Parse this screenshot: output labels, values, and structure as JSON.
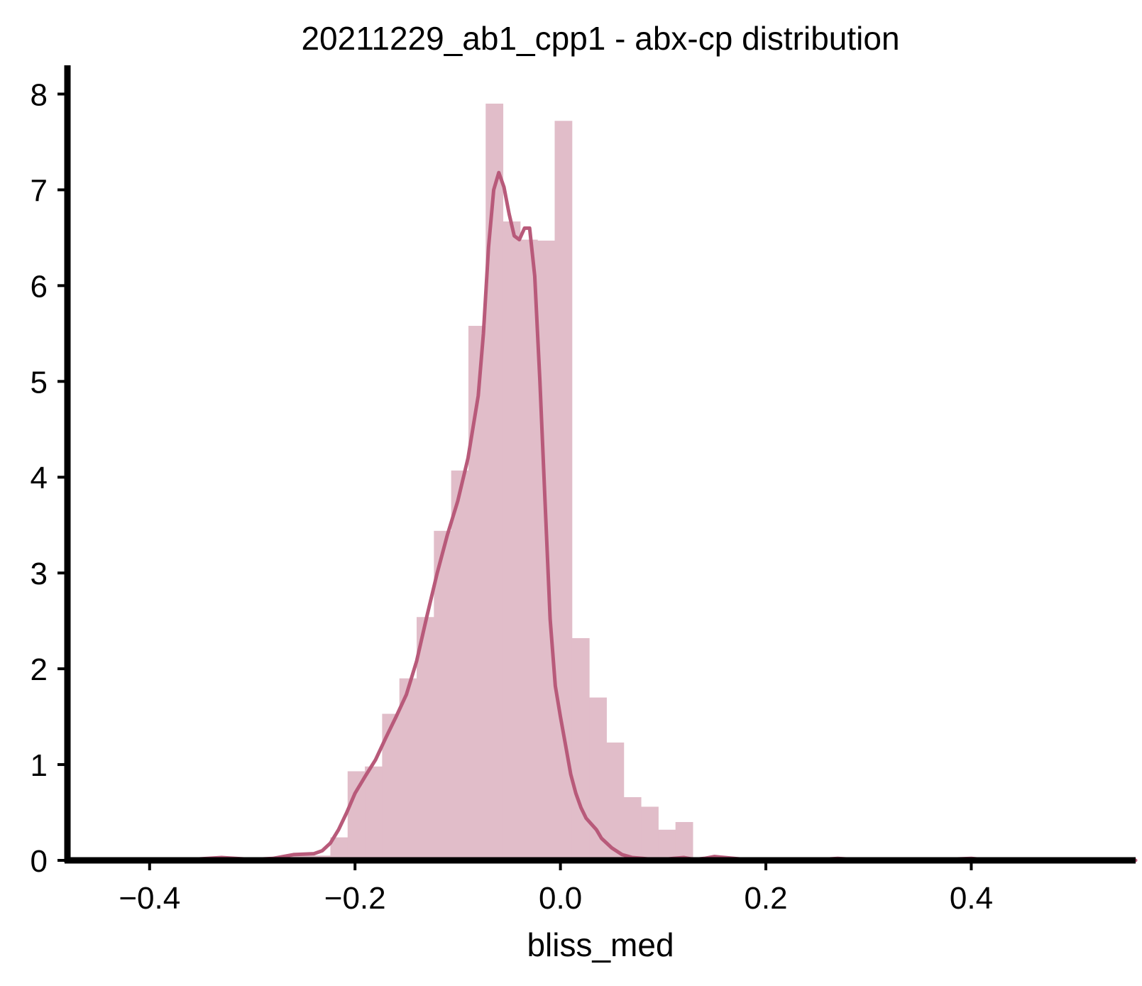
{
  "chart_data": {
    "type": "histogram",
    "title": "20211229_ab1_cpp1 - abx-cp distribution",
    "xlabel": "bliss_med",
    "ylabel": "",
    "xlim": [
      -0.48,
      0.56
    ],
    "ylim": [
      0,
      8.3
    ],
    "xticks": [
      -0.4,
      -0.2,
      0.0,
      0.2,
      0.4
    ],
    "xtick_labels": [
      "−0.4",
      "−0.2",
      "0.0",
      "0.2",
      "0.4"
    ],
    "yticks": [
      0,
      1,
      2,
      3,
      4,
      5,
      6,
      7,
      8
    ],
    "ytick_labels": [
      "0",
      "1",
      "2",
      "3",
      "4",
      "5",
      "6",
      "7",
      "8"
    ],
    "grid": false,
    "colors": {
      "bar": "#e1bdc9",
      "kde": "#b85a7a",
      "axis": "#000000"
    },
    "bins": [
      {
        "x0": -0.2744,
        "x1": -0.2576,
        "density": 0.05
      },
      {
        "x0": -0.2576,
        "x1": -0.2408,
        "density": 0.05
      },
      {
        "x0": -0.2408,
        "x1": -0.224,
        "density": 0.05
      },
      {
        "x0": -0.224,
        "x1": -0.2072,
        "density": 0.24
      },
      {
        "x0": -0.2072,
        "x1": -0.1904,
        "density": 0.93
      },
      {
        "x0": -0.1904,
        "x1": -0.1736,
        "density": 0.98
      },
      {
        "x0": -0.1736,
        "x1": -0.1568,
        "density": 1.53
      },
      {
        "x0": -0.1568,
        "x1": -0.14,
        "density": 1.9
      },
      {
        "x0": -0.14,
        "x1": -0.1232,
        "density": 2.54
      },
      {
        "x0": -0.1232,
        "x1": -0.1064,
        "density": 3.44
      },
      {
        "x0": -0.1064,
        "x1": -0.0896,
        "density": 4.07
      },
      {
        "x0": -0.0896,
        "x1": -0.0728,
        "density": 5.58
      },
      {
        "x0": -0.0728,
        "x1": -0.056,
        "density": 7.9
      },
      {
        "x0": -0.056,
        "x1": -0.0392,
        "density": 6.67
      },
      {
        "x0": -0.0392,
        "x1": -0.0224,
        "density": 6.48
      },
      {
        "x0": -0.0224,
        "x1": -0.0056,
        "density": 6.47
      },
      {
        "x0": -0.0056,
        "x1": 0.0112,
        "density": 7.72
      },
      {
        "x0": 0.0112,
        "x1": 0.028,
        "density": 2.32
      },
      {
        "x0": 0.028,
        "x1": 0.0448,
        "density": 1.7
      },
      {
        "x0": 0.0448,
        "x1": 0.0616,
        "density": 1.23
      },
      {
        "x0": 0.0616,
        "x1": 0.0784,
        "density": 0.66
      },
      {
        "x0": 0.0784,
        "x1": 0.0952,
        "density": 0.56
      },
      {
        "x0": 0.0952,
        "x1": 0.112,
        "density": 0.32
      },
      {
        "x0": 0.112,
        "x1": 0.1288,
        "density": 0.4
      }
    ],
    "kde": {
      "x": [
        -0.48,
        -0.4,
        -0.36,
        -0.33,
        -0.3,
        -0.28,
        -0.26,
        -0.24,
        -0.232,
        -0.224,
        -0.216,
        -0.208,
        -0.2,
        -0.19,
        -0.18,
        -0.17,
        -0.16,
        -0.15,
        -0.14,
        -0.13,
        -0.12,
        -0.11,
        -0.1,
        -0.09,
        -0.08,
        -0.075,
        -0.07,
        -0.065,
        -0.06,
        -0.055,
        -0.05,
        -0.045,
        -0.04,
        -0.035,
        -0.03,
        -0.025,
        -0.02,
        -0.015,
        -0.01,
        -0.005,
        0.0,
        0.005,
        0.01,
        0.015,
        0.02,
        0.025,
        0.03,
        0.035,
        0.04,
        0.05,
        0.06,
        0.07,
        0.08,
        0.09,
        0.1,
        0.11,
        0.12,
        0.13,
        0.14,
        0.15,
        0.16,
        0.18,
        0.2,
        0.24,
        0.27,
        0.3,
        0.35,
        0.4,
        0.42,
        0.45,
        0.5,
        0.56
      ],
      "y": [
        0.0,
        0.01,
        0.01,
        0.03,
        0.01,
        0.02,
        0.06,
        0.07,
        0.1,
        0.18,
        0.32,
        0.5,
        0.7,
        0.88,
        1.05,
        1.28,
        1.5,
        1.73,
        2.08,
        2.55,
        3.0,
        3.4,
        3.75,
        4.2,
        4.85,
        5.5,
        6.4,
        7.0,
        7.18,
        7.03,
        6.75,
        6.52,
        6.48,
        6.6,
        6.6,
        6.1,
        5.0,
        3.75,
        2.52,
        1.82,
        1.5,
        1.2,
        0.9,
        0.7,
        0.55,
        0.44,
        0.38,
        0.32,
        0.23,
        0.13,
        0.06,
        0.03,
        0.02,
        0.01,
        0.01,
        0.02,
        0.03,
        0.01,
        0.02,
        0.04,
        0.03,
        0.01,
        0.01,
        0.0,
        0.02,
        0.0,
        0.0,
        0.02,
        0.0,
        0.0,
        0.0,
        0.0
      ]
    }
  }
}
